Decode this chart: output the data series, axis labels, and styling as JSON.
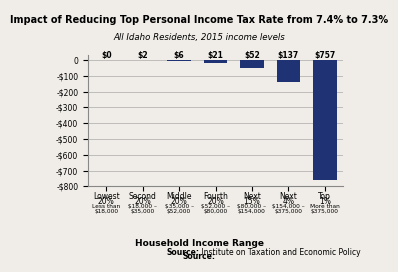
{
  "title": "Impact of Reducing Top Personal Income Tax Rate from 7.4% to 7.3%",
  "subtitle": "All Idaho Residents, 2015 income levels",
  "categories_line1": [
    "Lowest",
    "Second",
    "Middle",
    "Fourth",
    "Next",
    "Next",
    "Top"
  ],
  "categories_line2": [
    "20%",
    "20%",
    "20%",
    "20%",
    "15%",
    "4%",
    "1%"
  ],
  "subcategories_line1": [
    "Less than",
    "$18,000 –",
    "$35,000 –",
    "$52,000 –",
    "$80,000 –",
    "$154,000 –",
    "More than"
  ],
  "subcategories_line2": [
    "$18,000",
    "$35,000",
    "$52,000",
    "$80,000",
    "$154,000",
    "$375,000",
    "$375,000"
  ],
  "values": [
    0,
    -2,
    -6,
    -21,
    -52,
    -137,
    -757
  ],
  "bar_labels": [
    "$0",
    "$2",
    "$6",
    "$21",
    "$52",
    "$137",
    "$757"
  ],
  "bar_color": "#1f3274",
  "xlabel": "Household Income Range",
  "source_bold": "Source:",
  "source_rest": " Institute on Taxation and Economic Policy",
  "ylim": [
    -800,
    30
  ],
  "yticks": [
    0,
    -100,
    -200,
    -300,
    -400,
    -500,
    -600,
    -700,
    -800
  ],
  "ytick_labels": [
    "0",
    "-$100",
    "-$200",
    "-$300",
    "-$400",
    "-$500",
    "-$600",
    "-$700",
    "-$800"
  ],
  "bg_color": "#f0ede8",
  "title_fontsize": 7.0,
  "subtitle_fontsize": 6.2,
  "tick_fontsize": 5.5,
  "bar_label_fontsize": 5.5,
  "xlabel_fontsize": 6.5,
  "source_fontsize": 5.5,
  "subcat_fontsize": 4.2
}
